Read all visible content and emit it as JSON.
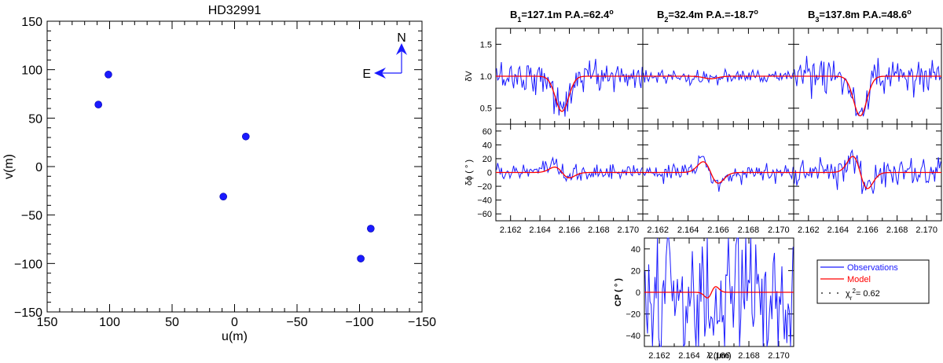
{
  "chart_data": [
    {
      "type": "scatter",
      "title": "HD32991",
      "xlabel": "u(m)",
      "ylabel": "v(m)",
      "xlim": [
        150,
        -150
      ],
      "ylim": [
        -150,
        150
      ],
      "xticks": [
        "150",
        "100",
        "50",
        "0",
        "−50",
        "−100",
        "−150"
      ],
      "yticks": [
        "150",
        "100",
        "50",
        "0",
        "−50",
        "−100",
        "−150"
      ],
      "color": "#1a1aff",
      "points": [
        {
          "u": 101,
          "v": 95
        },
        {
          "u": 109,
          "v": 64
        },
        {
          "u": -9,
          "v": 31
        },
        {
          "u": 9,
          "v": -31
        },
        {
          "u": -101,
          "v": -95
        },
        {
          "u": -109,
          "v": -64
        }
      ],
      "compass": {
        "north": "N",
        "east": "E"
      }
    },
    {
      "type": "line",
      "name": "differential_visibility_phase_closure",
      "x_range": [
        2.161,
        2.171
      ],
      "xticks": [
        "2.162",
        "2.164",
        "2.166",
        "2.168",
        "2.170"
      ],
      "xlabel": "λ (μm)",
      "baselines": [
        {
          "label": "B",
          "sub": "1",
          "value": "=127.1m",
          "pa": "P.A.=62.4",
          "deg": "o",
          "vis_min": 0.45,
          "phase_amp": 8
        },
        {
          "label": "B",
          "sub": "2",
          "value": "=32.4m",
          "pa": "P.A.=-18.7",
          "deg": "o",
          "vis_min": 0.96,
          "phase_amp": 16
        },
        {
          "label": "B",
          "sub": "3",
          "value": "=137.8m",
          "pa": "P.A.=48.6",
          "deg": "o",
          "vis_min": 0.38,
          "phase_amp": 24
        }
      ],
      "vis": {
        "ylabel": "δV",
        "ylim": [
          0.25,
          1.75
        ],
        "yticks": [
          "0.5",
          "1.0",
          "1.5"
        ]
      },
      "phase": {
        "ylabel": "δϕ ( ° )",
        "ylim": [
          -70,
          70
        ],
        "yticks": [
          "60",
          "40",
          "20",
          "0",
          "−20",
          "−40",
          "−60"
        ]
      },
      "cp": {
        "ylabel": "CP ( ° )",
        "ylim": [
          -50,
          50
        ],
        "yticks": [
          "40",
          "20",
          "0",
          "−20",
          "−40"
        ]
      },
      "series": [
        {
          "name": "Observations",
          "color": "#1a1aff"
        },
        {
          "name": "Model",
          "color": "#ff0000"
        }
      ],
      "chi2": {
        "symbol": "χ",
        "sub": "r",
        "sup": "2",
        "value": "= 0.62"
      }
    }
  ]
}
